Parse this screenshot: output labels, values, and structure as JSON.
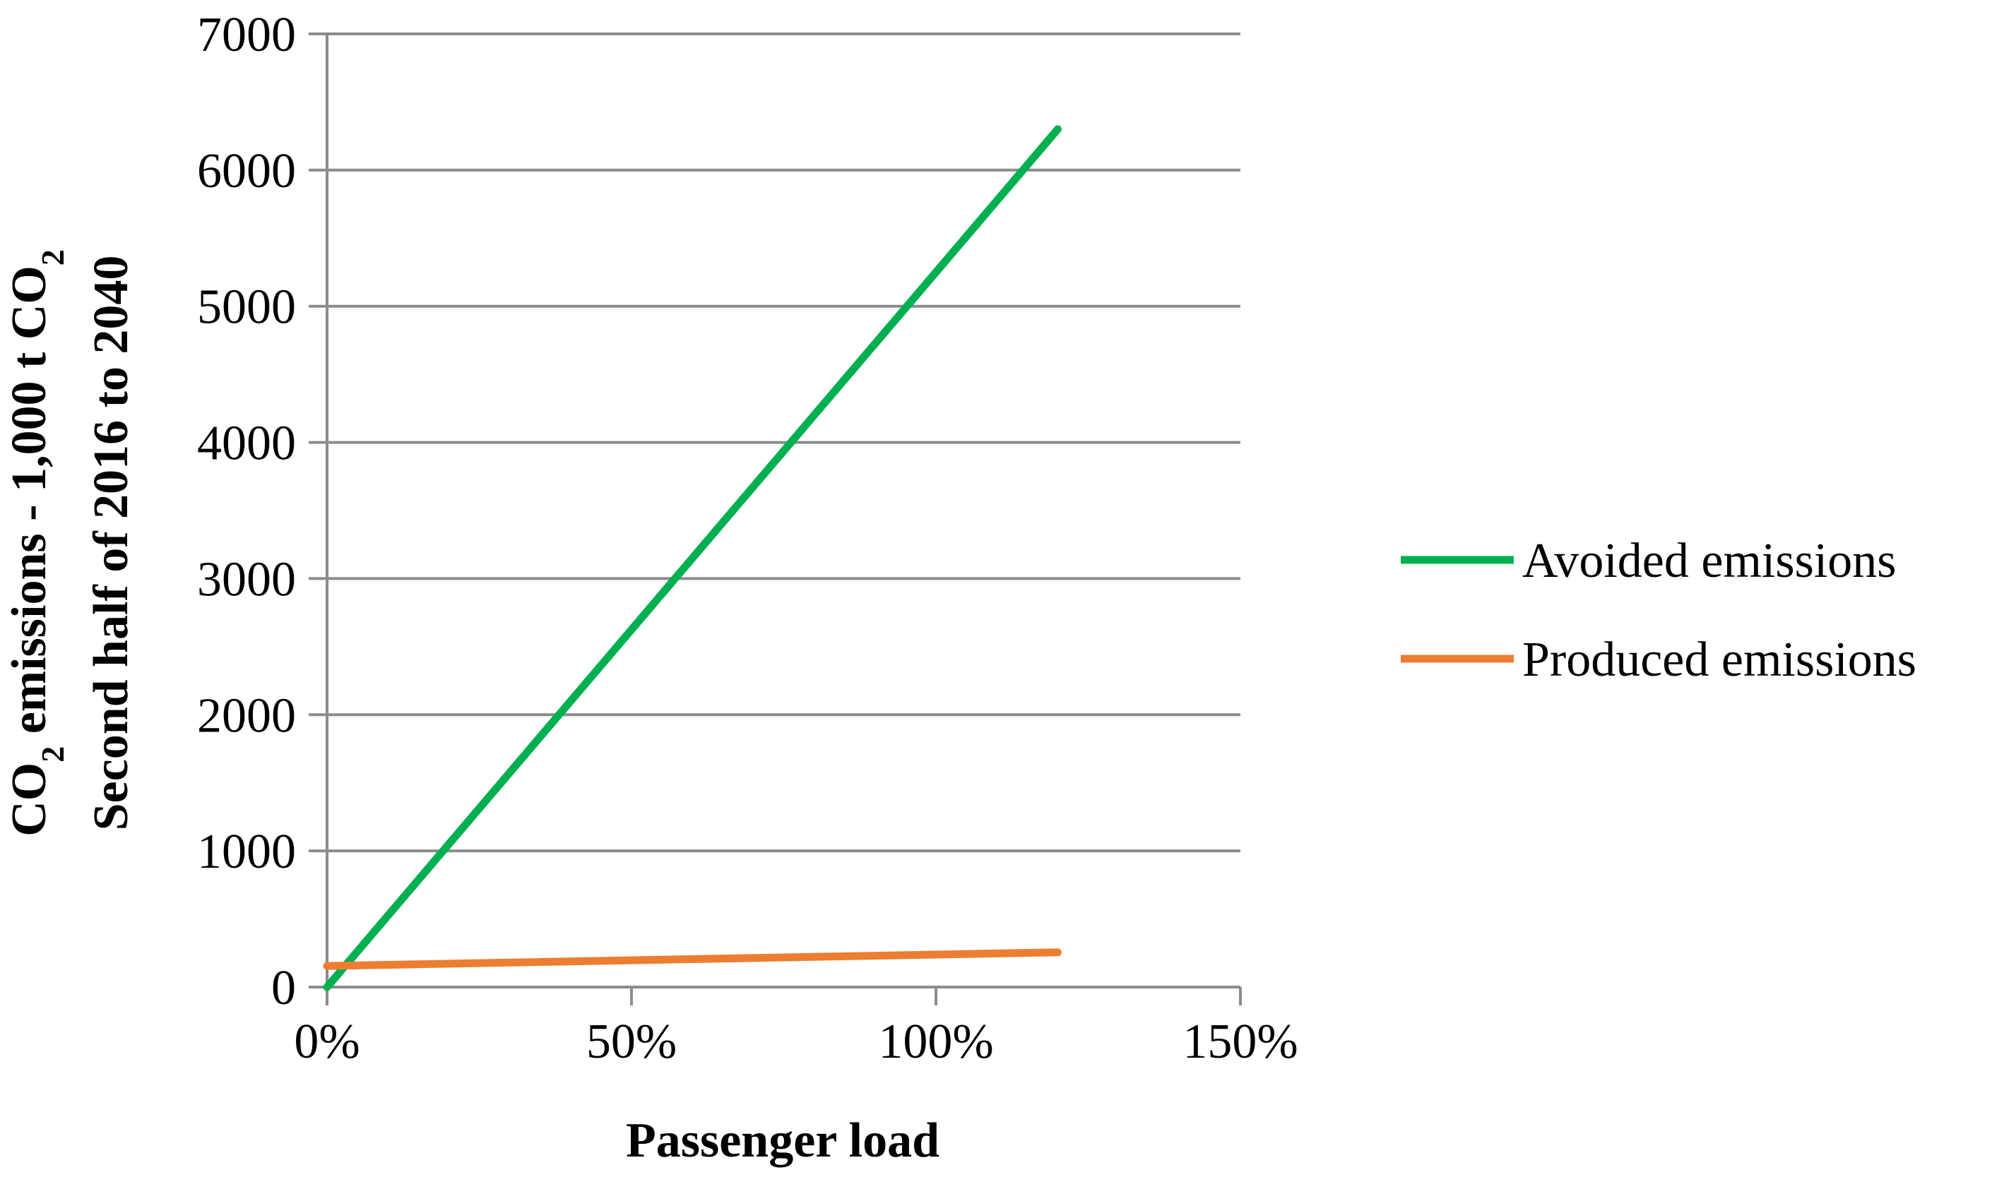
{
  "chart_data": {
    "type": "line",
    "xlabel": "Passenger load",
    "ylabel_line1": "CO",
    "ylabel_line1_sub": "2",
    "ylabel_line1_mid": " emissions - 1,000 t CO",
    "ylabel_line1_sub2": "2",
    "ylabel_line2": "Second half of 2016 to 2040",
    "xlim": [
      0,
      1.5
    ],
    "ylim": [
      0,
      7000
    ],
    "x_ticks": [
      0,
      0.5,
      1.0,
      1.5
    ],
    "x_tick_labels": [
      "0%",
      "50%",
      "100%",
      "150%"
    ],
    "y_ticks": [
      0,
      1000,
      2000,
      3000,
      4000,
      5000,
      6000,
      7000
    ],
    "y_tick_labels": [
      "0",
      "1000",
      "2000",
      "3000",
      "4000",
      "5000",
      "6000",
      "7000"
    ],
    "grid": "horizontal",
    "legend_position": "right",
    "series": [
      {
        "name": "Avoided emissions",
        "color": "#00b050",
        "x": [
          0.0,
          1.2
        ],
        "y": [
          0,
          6300
        ]
      },
      {
        "name": "Produced emissions",
        "color": "#ed7d31",
        "x": [
          0.0,
          1.2
        ],
        "y": [
          155,
          255
        ]
      }
    ]
  }
}
